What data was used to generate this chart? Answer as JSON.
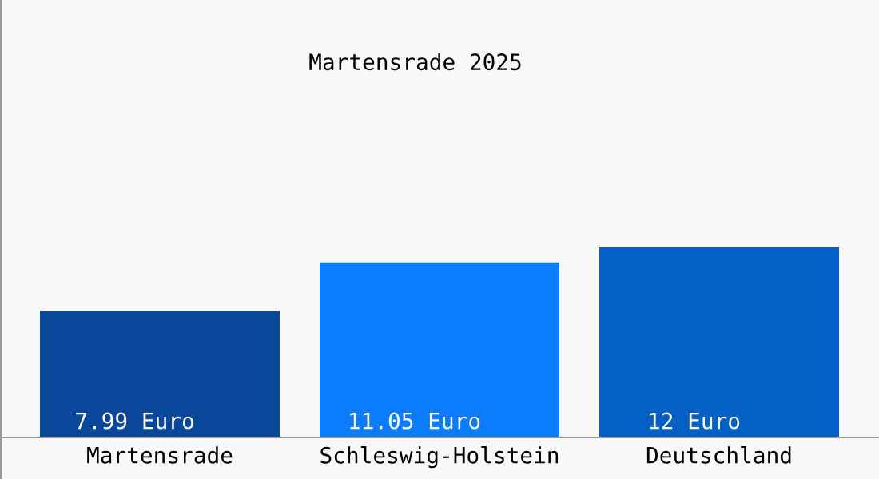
{
  "chart_data": {
    "type": "bar",
    "title": "Martensrade 2025",
    "categories": [
      "Martensrade",
      "Schleswig-Holstein",
      "Deutschland"
    ],
    "values": [
      7.99,
      11.05,
      12
    ],
    "colors": [
      "#08479a",
      "#0a7cfc",
      "#0560c6"
    ],
    "value_labels": [
      "7.99 Euro",
      "11.05 Euro",
      "12 Euro"
    ],
    "grid": false,
    "legend": false
  }
}
